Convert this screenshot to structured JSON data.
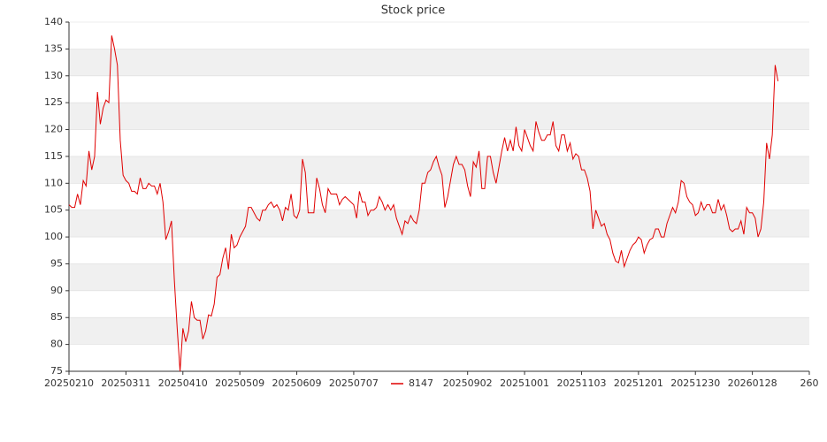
{
  "chart_data": {
    "type": "line",
    "title": "Stock price",
    "series": [
      {
        "name": "8147",
        "color": "#e00000",
        "values": [
          106,
          105.5,
          105.5,
          108,
          106,
          110.5,
          109.5,
          116,
          112.5,
          115,
          127,
          121,
          124,
          125.5,
          125,
          137.5,
          135,
          132,
          118,
          111.5,
          110.5,
          110,
          108.5,
          108.5,
          108,
          111,
          109,
          109,
          110,
          109.5,
          109.5,
          108,
          110,
          106.5,
          99.5,
          101,
          103,
          92,
          83,
          75,
          83,
          80.5,
          82.5,
          88,
          85,
          84.5,
          84.5,
          81,
          82.5,
          85.5,
          85.3,
          87.5,
          92.5,
          93,
          96,
          98,
          94,
          100.5,
          98,
          98.5,
          100,
          101,
          102,
          105.5,
          105.5,
          104.5,
          103.5,
          103,
          105,
          105,
          106,
          106.5,
          105.5,
          106,
          105,
          103,
          105.5,
          105,
          108,
          104,
          103.5,
          105,
          114.5,
          112,
          104.5,
          104.5,
          104.5,
          111,
          109,
          106,
          104.5,
          109,
          108,
          108,
          108,
          106,
          107,
          107.5,
          107,
          106.5,
          106,
          103.5,
          108.5,
          106.5,
          106.5,
          104,
          105,
          105,
          105.5,
          107.5,
          106.5,
          105,
          106,
          105,
          106,
          103.5,
          102,
          100.5,
          103,
          102.5,
          104,
          103,
          102.5,
          105,
          110,
          110,
          112,
          112.5,
          114,
          115,
          113,
          111.5,
          105.5,
          107.5,
          110.5,
          113.5,
          115,
          113.5,
          113.5,
          112.5,
          109.5,
          107.5,
          114,
          113,
          116,
          109,
          109,
          115,
          115,
          112,
          110,
          113,
          116,
          118.5,
          116,
          118,
          116,
          120.5,
          117,
          116,
          120,
          118.5,
          117,
          116,
          121.5,
          119.5,
          118,
          118,
          119,
          119,
          121.5,
          117,
          116,
          119,
          119,
          116,
          117.5,
          114.5,
          115.5,
          115,
          112.5,
          112.5,
          111,
          108.5,
          101.5,
          105,
          103.5,
          102,
          102.5,
          100.5,
          99.5,
          97,
          95.5,
          95.2,
          97.5,
          94.5,
          96,
          97.5,
          98.5,
          99,
          100,
          99.5,
          97,
          98.5,
          99.5,
          99.8,
          101.5,
          101.5,
          100,
          100,
          102.5,
          104,
          105.5,
          104.5,
          106.5,
          110.5,
          110,
          107.5,
          106.5,
          106,
          104,
          104.5,
          106.5,
          105,
          106,
          106,
          104.5,
          104.5,
          107,
          105,
          106,
          104,
          101.5,
          101,
          101.5,
          101.5,
          103,
          100.5,
          105.5,
          104.5,
          104.5,
          103.5,
          100,
          101.5,
          106.5,
          117.5,
          114.5,
          119,
          132,
          129
        ]
      }
    ],
    "xlim": [
      0,
      260
    ],
    "xticks": [
      {
        "value": 0,
        "label": "20250210"
      },
      {
        "value": 20,
        "label": "20250311"
      },
      {
        "value": 40,
        "label": "20250410"
      },
      {
        "value": 60,
        "label": "20250509"
      },
      {
        "value": 80,
        "label": "20250609"
      },
      {
        "value": 100,
        "label": "20250707"
      },
      {
        "value": 140,
        "label": "20250902"
      },
      {
        "value": 160,
        "label": "20251001"
      },
      {
        "value": 180,
        "label": "20251103"
      },
      {
        "value": 200,
        "label": "20251201"
      },
      {
        "value": 220,
        "label": "20251230"
      },
      {
        "value": 240,
        "label": "20260128"
      },
      {
        "value": 260,
        "label": "260"
      }
    ],
    "ylim": [
      75,
      140
    ],
    "yticks": [
      75,
      80,
      85,
      90,
      95,
      100,
      105,
      110,
      115,
      120,
      125,
      130,
      135,
      140
    ],
    "grid": true,
    "legend": "bottom"
  }
}
